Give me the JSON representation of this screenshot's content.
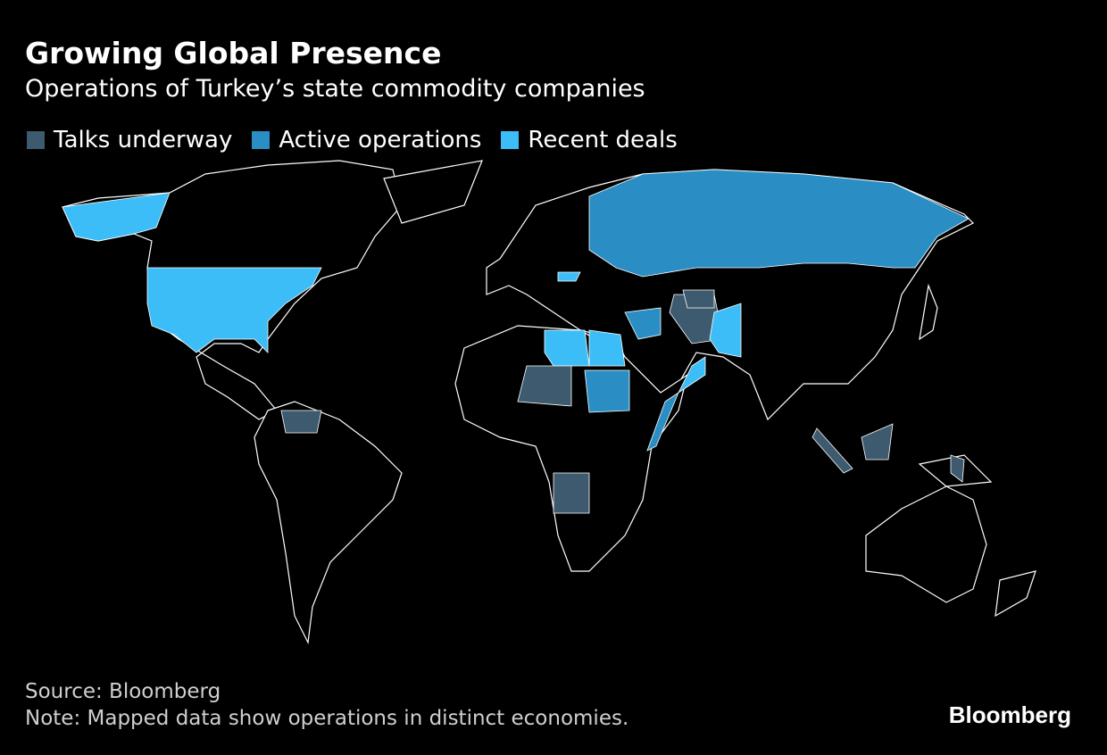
{
  "header": {
    "title": "Growing Global Presence",
    "subtitle": "Operations of Turkey’s state commodity companies"
  },
  "legend": [
    {
      "label": "Talks underway",
      "color": "#3e5a6e"
    },
    {
      "label": "Active operations",
      "color": "#2a8ec4"
    },
    {
      "label": "Recent deals",
      "color": "#3dbdf7"
    }
  ],
  "footer": {
    "source": "Source: Bloomberg",
    "note": "Note: Mapped data show operations in distinct economies.",
    "logo": "Bloomberg"
  }
}
